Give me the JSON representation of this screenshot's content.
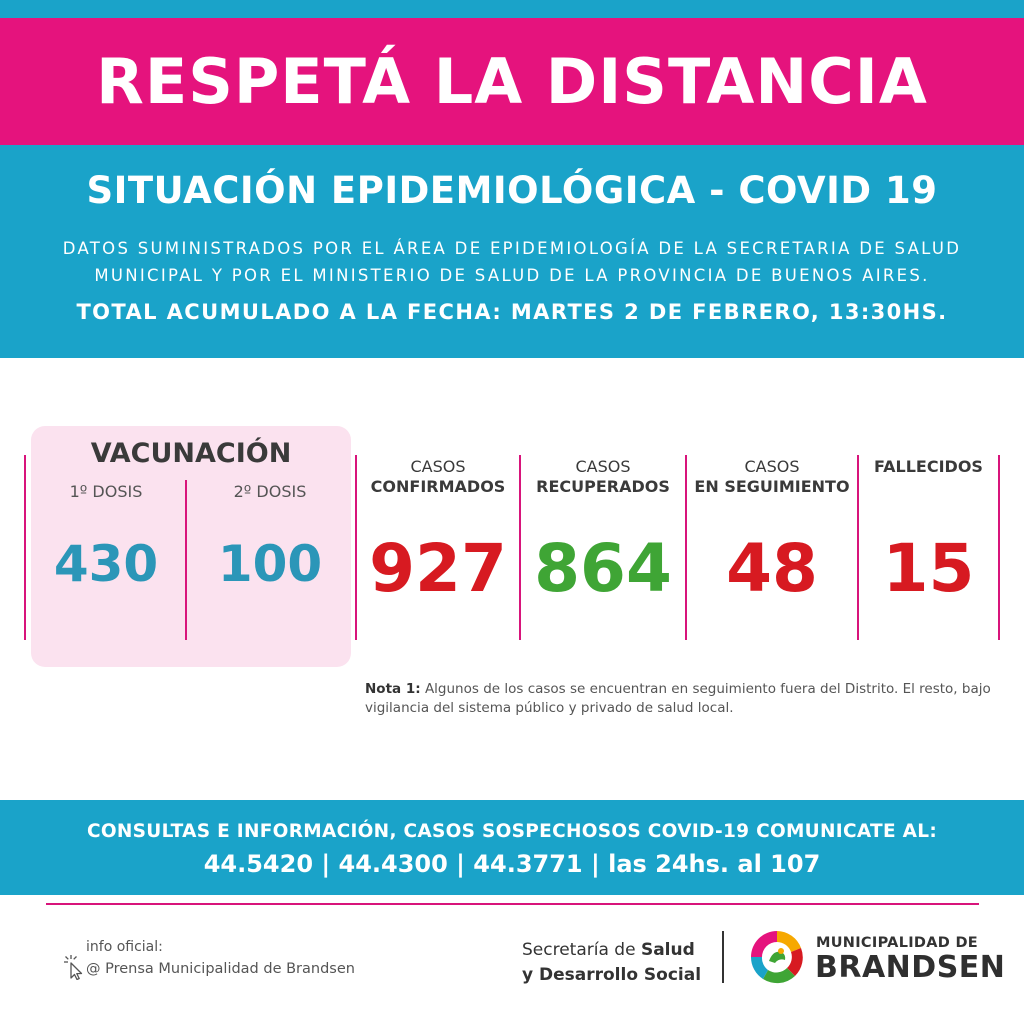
{
  "banner": {
    "title": "RESPETÁ LA DISTANCIA"
  },
  "header": {
    "title": "SITUACIÓN EPIDEMIOLÓGICA - COVID 19",
    "source_line1": "DATOS SUMINISTRADOS POR EL ÁREA DE EPIDEMIOLOGÍA DE LA SECRETARIA DE SALUD",
    "source_line2": "MUNICIPAL Y POR EL MINISTERIO DE SALUD DE LA PROVINCIA DE BUENOS AIRES.",
    "total": "TOTAL ACUMULADO A LA FECHA: MARTES 2 DE FEBRERO, 13:30HS."
  },
  "vaccination": {
    "title": "VACUNACIÓN",
    "dose1_label": "1º DOSIS",
    "dose1_value": "430",
    "dose2_label": "2º DOSIS",
    "dose2_value": "100"
  },
  "cases": [
    {
      "line1": "CASOS",
      "line2": "CONFIRMADOS",
      "value": "927"
    },
    {
      "line1": "CASOS",
      "line2": "RECUPERADOS",
      "value": "864"
    },
    {
      "line1": "CASOS",
      "line2": "EN SEGUIMIENTO",
      "value": "48"
    },
    {
      "line1": "",
      "line2": "FALLECIDOS",
      "value": "15"
    }
  ],
  "colors": {
    "pink": "#e5137d",
    "blue": "#1aa3c9",
    "confirmed": "#d71a21",
    "recovered": "#3fa535",
    "following": "#d71a21",
    "deceased": "#d71a21",
    "vaccination_value": "#2b96b8"
  },
  "note": {
    "label": "Nota 1:",
    "text": "Algunos de los casos se encuentran en seguimiento fuera del Distrito. El resto, bajo vigilancia del sistema público y privado de salud local."
  },
  "contact": {
    "line1": "CONSULTAS E INFORMACIÓN, CASOS SOSPECHOSOS COVID-19 COMUNICATE AL:",
    "line2": "44.5420 | 44.4300 | 44.3771 | las 24hs. al 107"
  },
  "footer": {
    "info_label": "info oficial:",
    "info_handle": "@ Prensa Municipalidad de Brandsen",
    "info_icon": "cursor-click-icon",
    "secretaria_prefix": "Secretaría de ",
    "secretaria_bold1": "Salud",
    "secretaria_line2": "y Desarrollo Social",
    "muni_small": "MUNICIPALIDAD DE",
    "muni_big": "BRANDSEN",
    "logo_icon": "municipal-logo-icon"
  }
}
